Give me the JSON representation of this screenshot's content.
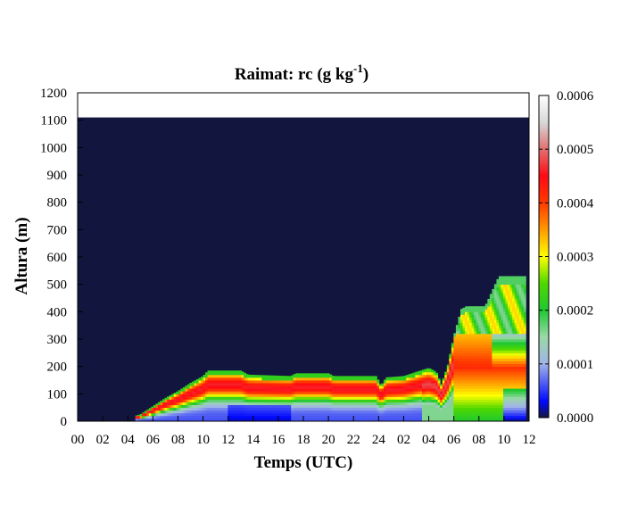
{
  "chart_data": {
    "type": "heatmap",
    "title": {
      "prefix": "Raimat: rc (g kg",
      "superscript": "-1",
      "suffix": ")"
    },
    "xlabel": "Temps (UTC)",
    "ylabel": "Altura (m)",
    "x_ticks": [
      "00",
      "02",
      "04",
      "06",
      "08",
      "10",
      "12",
      "14",
      "16",
      "18",
      "20",
      "22",
      "24",
      "02",
      "04",
      "06",
      "08",
      "10",
      "12"
    ],
    "xlim_hours": [
      0,
      36
    ],
    "y_ticks": [
      "0",
      "100",
      "200",
      "300",
      "400",
      "500",
      "600",
      "700",
      "800",
      "900",
      "1000",
      "1100",
      "1200"
    ],
    "ylim": [
      0,
      1200
    ],
    "data_top_m": 1110,
    "colorbar": {
      "ticks": [
        "0.0000",
        "0.0001",
        "0.0002",
        "0.0003",
        "0.0004",
        "0.0005",
        "0.0006"
      ],
      "range": [
        0,
        0.0006
      ],
      "stops": [
        {
          "v": 0.0,
          "color": "#12163e"
        },
        {
          "v": 3e-05,
          "color": "#0008ff"
        },
        {
          "v": 0.0001,
          "color": "#a0b4e8"
        },
        {
          "v": 0.00015,
          "color": "#9ad8a8"
        },
        {
          "v": 0.0002,
          "color": "#1fc832"
        },
        {
          "v": 0.00025,
          "color": "#4fd800"
        },
        {
          "v": 0.0003,
          "color": "#ffff00"
        },
        {
          "v": 0.00035,
          "color": "#ff9a00"
        },
        {
          "v": 0.0004,
          "color": "#ff3a00"
        },
        {
          "v": 0.00045,
          "color": "#ff0a14"
        },
        {
          "v": 0.0005,
          "color": "#e07070"
        },
        {
          "v": 0.00055,
          "color": "#d8d8d8"
        },
        {
          "v": 0.0006,
          "color": "#ffffff"
        }
      ]
    },
    "cloud_top_profile": [
      {
        "h": 4.6,
        "z": 20
      },
      {
        "h": 5.0,
        "z": 25
      },
      {
        "h": 6.0,
        "z": 55
      },
      {
        "h": 7.0,
        "z": 85
      },
      {
        "h": 8.0,
        "z": 110
      },
      {
        "h": 9.0,
        "z": 140
      },
      {
        "h": 10.0,
        "z": 165
      },
      {
        "h": 10.4,
        "z": 185
      },
      {
        "h": 13.0,
        "z": 185
      },
      {
        "h": 13.6,
        "z": 170
      },
      {
        "h": 17.0,
        "z": 165
      },
      {
        "h": 17.4,
        "z": 175
      },
      {
        "h": 20.0,
        "z": 175
      },
      {
        "h": 20.4,
        "z": 165
      },
      {
        "h": 23.8,
        "z": 165
      },
      {
        "h": 24.2,
        "z": 130
      },
      {
        "h": 24.6,
        "z": 160
      },
      {
        "h": 26.0,
        "z": 165
      },
      {
        "h": 28.0,
        "z": 195
      },
      {
        "h": 28.6,
        "z": 180
      },
      {
        "h": 29.0,
        "z": 135
      },
      {
        "h": 29.5,
        "z": 200
      },
      {
        "h": 30.0,
        "z": 310
      },
      {
        "h": 30.6,
        "z": 410
      },
      {
        "h": 31.0,
        "z": 420
      },
      {
        "h": 32.5,
        "z": 420
      },
      {
        "h": 33.0,
        "z": 470
      },
      {
        "h": 33.6,
        "z": 530
      },
      {
        "h": 35.8,
        "z": 530
      }
    ],
    "cloud_base_m": 0,
    "cloud_end_hour": 35.8
  }
}
